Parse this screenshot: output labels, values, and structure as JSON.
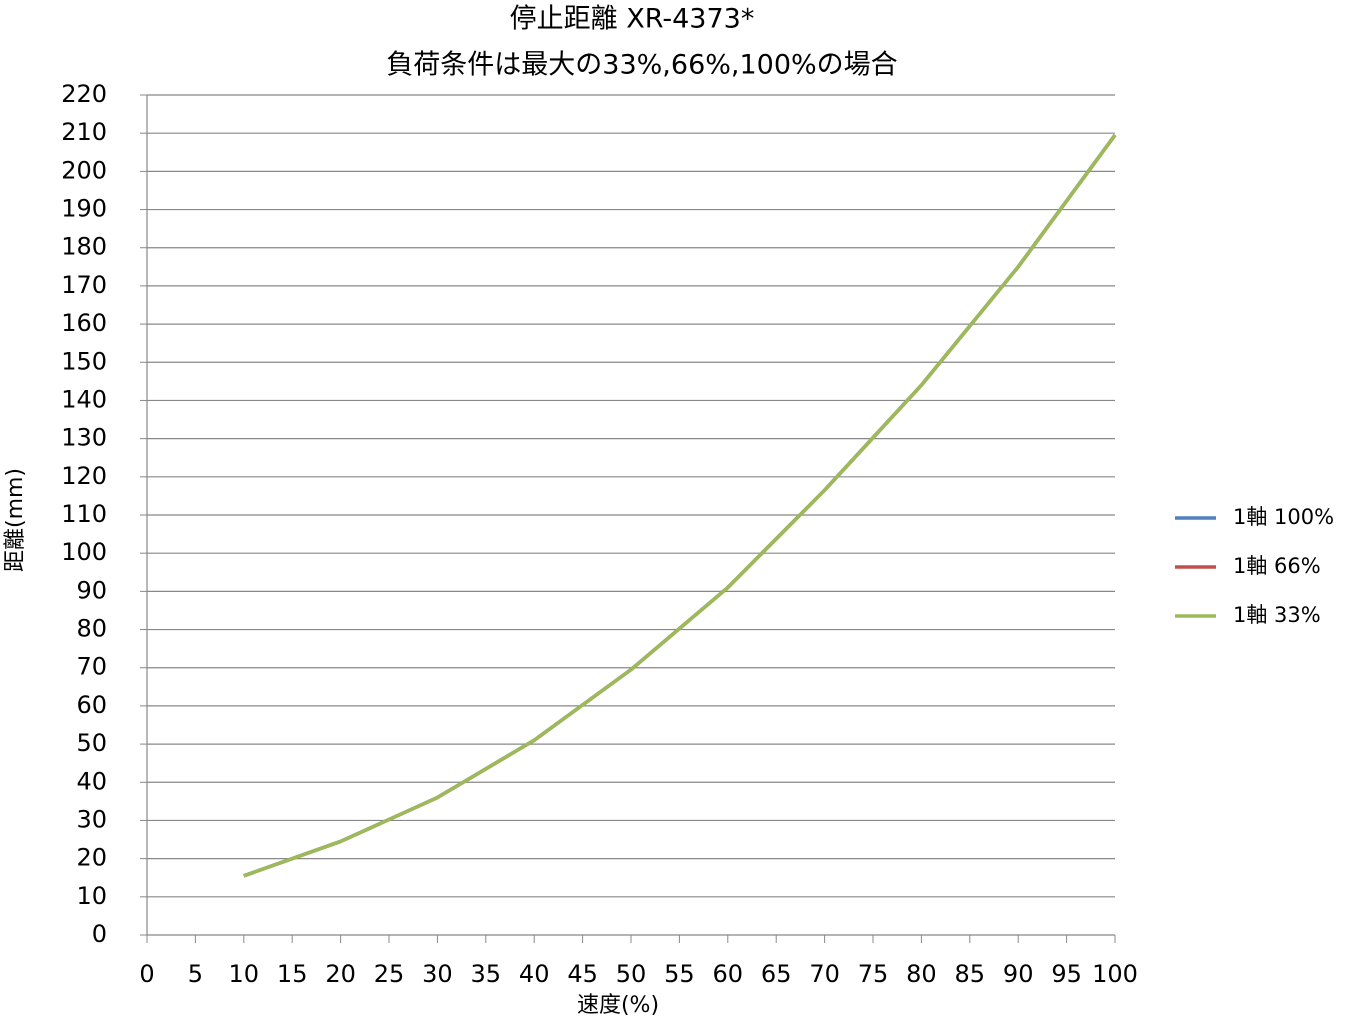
{
  "chart_data": {
    "type": "line",
    "title": "停止距離 XR-4373*",
    "subtitle": "負荷条件は最大の33%,66%,100%の場合",
    "x_label": "速度(%)",
    "y_label": "距離(mm)",
    "x": [
      10,
      20,
      30,
      40,
      50,
      60,
      70,
      80,
      90,
      100
    ],
    "series": [
      {
        "name": "1軸 100%",
        "color": "#4f81bd",
        "values": [
          15.5,
          24.5,
          36,
          51,
          69.5,
          91,
          116.5,
          144,
          175,
          209.5
        ]
      },
      {
        "name": "1軸 66%",
        "color": "#c0504d",
        "values": [
          15.5,
          24.5,
          36,
          51,
          69.5,
          91,
          116.5,
          144,
          175,
          209.5
        ]
      },
      {
        "name": "1軸 33%",
        "color": "#9bbb59",
        "values": [
          15.5,
          24.5,
          36,
          51,
          69.5,
          91,
          116.5,
          144,
          175,
          209.5
        ]
      }
    ],
    "xlim": [
      0,
      100
    ],
    "xticks": [
      0,
      5,
      10,
      15,
      20,
      25,
      30,
      35,
      40,
      45,
      50,
      55,
      60,
      65,
      70,
      75,
      80,
      85,
      90,
      95,
      100
    ],
    "ylim": [
      0,
      220
    ],
    "yticks": [
      0,
      10,
      20,
      30,
      40,
      50,
      60,
      70,
      80,
      90,
      100,
      110,
      120,
      130,
      140,
      150,
      160,
      170,
      180,
      190,
      200,
      210,
      220
    ],
    "grid": true,
    "legend": "right"
  }
}
